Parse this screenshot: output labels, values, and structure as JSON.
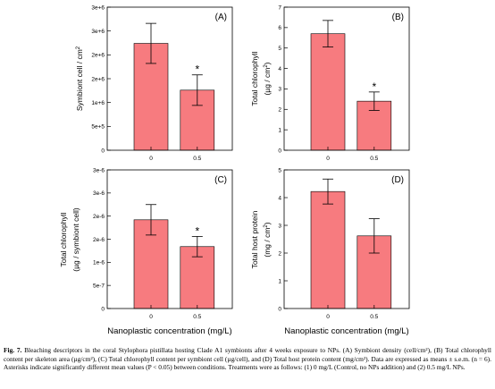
{
  "chart_data": [
    {
      "type": "bar",
      "panel_label": "(A)",
      "categories": [
        "0",
        "0.5"
      ],
      "values": [
        2240000,
        1260000
      ],
      "errors": [
        420000,
        320000
      ],
      "significance": [
        "",
        "*"
      ],
      "ylabel": "Symbiont cell / cm",
      "ylabel_sup": "2",
      "ylim": [
        0,
        3000000
      ],
      "ytick_labels": [
        "0",
        "5e+5",
        "1e+6",
        "2e+6",
        "2e+6",
        "3e+6",
        "3e+6"
      ],
      "bar_color": "#f77b7f"
    },
    {
      "type": "bar",
      "panel_label": "(B)",
      "categories": [
        "0",
        "0.5"
      ],
      "values": [
        5.7,
        2.4
      ],
      "errors": [
        0.65,
        0.45
      ],
      "significance": [
        "",
        "*"
      ],
      "ylabel": "Total chlorophyll",
      "ylabel2": "(µg / cm",
      "ylabel2_sup": "2",
      "ylabel2_end": ")",
      "ylim": [
        0,
        7
      ],
      "ytick_labels": [
        "0",
        "1",
        "2",
        "3",
        "4",
        "5",
        "6",
        "7"
      ],
      "bar_color": "#f77b7f"
    },
    {
      "type": "bar",
      "panel_label": "(C)",
      "categories": [
        "0",
        "0.5"
      ],
      "values": [
        1.92e-06,
        1.34e-06
      ],
      "errors": [
        3.3e-07,
        2.2e-07
      ],
      "significance": [
        "",
        "*"
      ],
      "ylabel": "Total chlorophyll",
      "ylabel2": "(µg / symbiont cell)",
      "ylim": [
        0,
        3e-06
      ],
      "ytick_labels": [
        "0",
        "5e-7",
        "1e-6",
        "2e-6",
        "2e-6",
        "3e-6",
        "3e-6"
      ],
      "bar_color": "#f77b7f"
    },
    {
      "type": "bar",
      "panel_label": "(D)",
      "categories": [
        "0",
        "0.5"
      ],
      "values": [
        4.22,
        2.62
      ],
      "errors": [
        0.45,
        0.62
      ],
      "significance": [
        "",
        ""
      ],
      "ylabel": "Total host protein",
      "ylabel2": "(mg / cm",
      "ylabel2_sup": "2",
      "ylabel2_end": ")",
      "ylim": [
        0,
        5
      ],
      "ytick_labels": [
        "0",
        "1",
        "2",
        "3",
        "4",
        "5"
      ],
      "bar_color": "#f77b7f"
    }
  ],
  "shared_xlabel": "Nanoplastic concentration (mg/L)",
  "caption": {
    "fig_label": "Fig. 7.",
    "text": "Bleaching descriptors in the coral Stylophora pistillata hosting Clade A1 symbionts after 4 weeks exposure to NPs. (A) Symbiont density (cell/cm²), (B) Total chlorophyll content per skeleton area (µg/cm²), (C) Total chlorophyll content per symbiont cell (µg/cell), and (D) Total host protein content (mg/cm²). Data are expressed as means ± s.e.m. (n = 6). Asterisks indicate significantly different mean values (P < 0.05) between conditions. Treatments were as follows: (1) 0 mg/L (Control, no NPs addition) and (2) 0.5 mg/L NPs."
  }
}
